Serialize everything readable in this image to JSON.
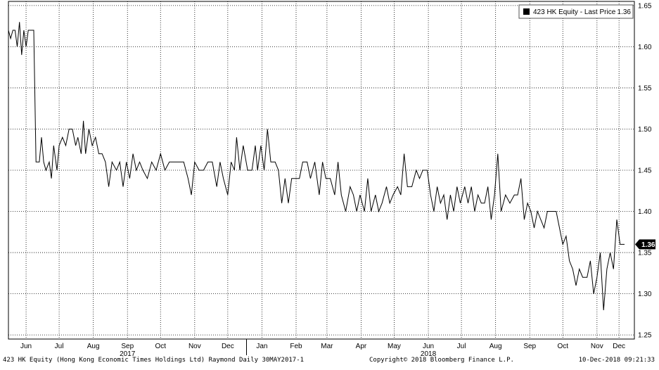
{
  "legend": {
    "label": "423 HK Equity - Last Price",
    "value": "1.36"
  },
  "last_price_tag": "1.36",
  "footer": {
    "left": "423 HK Equity (Hong Kong Economic Times Holdings Ltd) Raymond  Daily 30MAY2017-1",
    "center": "Copyright© 2018 Bloomberg Finance L.P.",
    "right": "10-Dec-2018 09:21:33"
  },
  "colors": {
    "line": "#000000",
    "grid": "#000000",
    "tag_bg": "#000000",
    "tag_text": "#ffffff"
  },
  "chart_data": {
    "type": "line",
    "title": "",
    "xlabel": "",
    "ylabel": "",
    "ylim": [
      1.25,
      1.65
    ],
    "yticks": [
      1.25,
      1.3,
      1.35,
      1.4,
      1.45,
      1.5,
      1.55,
      1.6,
      1.65
    ],
    "ytick_labels": [
      "1.25",
      "1.30",
      "1.35",
      "1.40",
      "1.45",
      "1.50",
      "1.55",
      "1.60",
      "1.65"
    ],
    "xlim": [
      "2017-05-30",
      "2018-12-10"
    ],
    "xtick_labels": [
      "Jun",
      "Jul",
      "Aug",
      "Sep",
      "Oct",
      "Nov",
      "Dec",
      "Jan",
      "Feb",
      "Mar",
      "Apr",
      "May",
      "Jun",
      "Jul",
      "Aug",
      "Sep",
      "Oct",
      "Nov",
      "Dec"
    ],
    "xtick_dates": [
      "2017-06-15",
      "2017-07-15",
      "2017-08-15",
      "2017-09-15",
      "2017-10-15",
      "2017-11-15",
      "2017-12-15",
      "2018-01-15",
      "2018-02-15",
      "2018-03-15",
      "2018-04-15",
      "2018-05-15",
      "2018-06-15",
      "2018-07-15",
      "2018-08-15",
      "2018-09-15",
      "2018-10-15",
      "2018-11-15",
      "2018-12-05"
    ],
    "year_labels": [
      {
        "label": "2017",
        "date": "2017-09-15"
      },
      {
        "label": "2018",
        "date": "2018-06-15"
      }
    ],
    "grid": true,
    "legend_position": "top-right",
    "series": [
      {
        "name": "423 HK Equity - Last Price",
        "points": [
          [
            "2017-05-30",
            1.62
          ],
          [
            "2017-06-01",
            1.61
          ],
          [
            "2017-06-03",
            1.62
          ],
          [
            "2017-06-05",
            1.62
          ],
          [
            "2017-06-07",
            1.6
          ],
          [
            "2017-06-09",
            1.63
          ],
          [
            "2017-06-11",
            1.59
          ],
          [
            "2017-06-13",
            1.62
          ],
          [
            "2017-06-15",
            1.6
          ],
          [
            "2017-06-17",
            1.62
          ],
          [
            "2017-06-22",
            1.62
          ],
          [
            "2017-06-24",
            1.46
          ],
          [
            "2017-06-27",
            1.46
          ],
          [
            "2017-06-29",
            1.49
          ],
          [
            "2017-07-01",
            1.46
          ],
          [
            "2017-07-03",
            1.45
          ],
          [
            "2017-07-06",
            1.46
          ],
          [
            "2017-07-08",
            1.44
          ],
          [
            "2017-07-10",
            1.48
          ],
          [
            "2017-07-13",
            1.45
          ],
          [
            "2017-07-15",
            1.48
          ],
          [
            "2017-07-18",
            1.49
          ],
          [
            "2017-07-21",
            1.48
          ],
          [
            "2017-07-24",
            1.5
          ],
          [
            "2017-07-27",
            1.5
          ],
          [
            "2017-07-30",
            1.48
          ],
          [
            "2017-08-01",
            1.49
          ],
          [
            "2017-08-04",
            1.47
          ],
          [
            "2017-08-06",
            1.51
          ],
          [
            "2017-08-08",
            1.47
          ],
          [
            "2017-08-11",
            1.5
          ],
          [
            "2017-08-14",
            1.48
          ],
          [
            "2017-08-17",
            1.49
          ],
          [
            "2017-08-20",
            1.47
          ],
          [
            "2017-08-23",
            1.47
          ],
          [
            "2017-08-26",
            1.46
          ],
          [
            "2017-08-29",
            1.43
          ],
          [
            "2017-09-01",
            1.46
          ],
          [
            "2017-09-05",
            1.45
          ],
          [
            "2017-09-08",
            1.46
          ],
          [
            "2017-09-11",
            1.43
          ],
          [
            "2017-09-14",
            1.46
          ],
          [
            "2017-09-17",
            1.44
          ],
          [
            "2017-09-20",
            1.47
          ],
          [
            "2017-09-23",
            1.45
          ],
          [
            "2017-09-26",
            1.46
          ],
          [
            "2017-09-29",
            1.45
          ],
          [
            "2017-10-03",
            1.44
          ],
          [
            "2017-10-07",
            1.46
          ],
          [
            "2017-10-11",
            1.45
          ],
          [
            "2017-10-15",
            1.47
          ],
          [
            "2017-10-19",
            1.45
          ],
          [
            "2017-10-23",
            1.46
          ],
          [
            "2017-10-27",
            1.46
          ],
          [
            "2017-11-01",
            1.46
          ],
          [
            "2017-11-05",
            1.46
          ],
          [
            "2017-11-09",
            1.44
          ],
          [
            "2017-11-12",
            1.42
          ],
          [
            "2017-11-15",
            1.46
          ],
          [
            "2017-11-19",
            1.45
          ],
          [
            "2017-11-23",
            1.45
          ],
          [
            "2017-11-27",
            1.46
          ],
          [
            "2017-12-01",
            1.46
          ],
          [
            "2017-12-05",
            1.43
          ],
          [
            "2017-12-08",
            1.46
          ],
          [
            "2017-12-11",
            1.44
          ],
          [
            "2017-12-15",
            1.42
          ],
          [
            "2017-12-18",
            1.46
          ],
          [
            "2017-12-21",
            1.45
          ],
          [
            "2017-12-23",
            1.49
          ],
          [
            "2017-12-26",
            1.45
          ],
          [
            "2017-12-29",
            1.48
          ],
          [
            "2018-01-02",
            1.45
          ],
          [
            "2018-01-06",
            1.45
          ],
          [
            "2018-01-09",
            1.48
          ],
          [
            "2018-01-11",
            1.45
          ],
          [
            "2018-01-14",
            1.48
          ],
          [
            "2018-01-17",
            1.45
          ],
          [
            "2018-01-20",
            1.5
          ],
          [
            "2018-01-23",
            1.46
          ],
          [
            "2018-01-27",
            1.46
          ],
          [
            "2018-01-30",
            1.45
          ],
          [
            "2018-02-02",
            1.41
          ],
          [
            "2018-02-05",
            1.44
          ],
          [
            "2018-02-08",
            1.41
          ],
          [
            "2018-02-11",
            1.44
          ],
          [
            "2018-02-14",
            1.44
          ],
          [
            "2018-02-18",
            1.44
          ],
          [
            "2018-02-21",
            1.46
          ],
          [
            "2018-02-25",
            1.46
          ],
          [
            "2018-02-28",
            1.44
          ],
          [
            "2018-03-04",
            1.46
          ],
          [
            "2018-03-08",
            1.42
          ],
          [
            "2018-03-11",
            1.46
          ],
          [
            "2018-03-14",
            1.44
          ],
          [
            "2018-03-18",
            1.44
          ],
          [
            "2018-03-22",
            1.42
          ],
          [
            "2018-03-25",
            1.46
          ],
          [
            "2018-03-28",
            1.42
          ],
          [
            "2018-04-01",
            1.4
          ],
          [
            "2018-04-05",
            1.43
          ],
          [
            "2018-04-08",
            1.42
          ],
          [
            "2018-04-11",
            1.4
          ],
          [
            "2018-04-14",
            1.42
          ],
          [
            "2018-04-18",
            1.4
          ],
          [
            "2018-04-21",
            1.44
          ],
          [
            "2018-04-24",
            1.4
          ],
          [
            "2018-04-28",
            1.42
          ],
          [
            "2018-05-01",
            1.4
          ],
          [
            "2018-05-04",
            1.41
          ],
          [
            "2018-05-08",
            1.43
          ],
          [
            "2018-05-11",
            1.41
          ],
          [
            "2018-05-14",
            1.42
          ],
          [
            "2018-05-18",
            1.43
          ],
          [
            "2018-05-21",
            1.42
          ],
          [
            "2018-05-24",
            1.47
          ],
          [
            "2018-05-27",
            1.43
          ],
          [
            "2018-05-31",
            1.43
          ],
          [
            "2018-06-04",
            1.45
          ],
          [
            "2018-06-07",
            1.44
          ],
          [
            "2018-06-10",
            1.45
          ],
          [
            "2018-06-14",
            1.45
          ],
          [
            "2018-06-17",
            1.42
          ],
          [
            "2018-06-20",
            1.4
          ],
          [
            "2018-06-23",
            1.43
          ],
          [
            "2018-06-26",
            1.41
          ],
          [
            "2018-06-29",
            1.42
          ],
          [
            "2018-07-02",
            1.39
          ],
          [
            "2018-07-05",
            1.42
          ],
          [
            "2018-07-08",
            1.4
          ],
          [
            "2018-07-11",
            1.43
          ],
          [
            "2018-07-14",
            1.41
          ],
          [
            "2018-07-18",
            1.43
          ],
          [
            "2018-07-21",
            1.41
          ],
          [
            "2018-07-24",
            1.43
          ],
          [
            "2018-07-27",
            1.4
          ],
          [
            "2018-07-30",
            1.42
          ],
          [
            "2018-08-02",
            1.41
          ],
          [
            "2018-08-05",
            1.41
          ],
          [
            "2018-08-08",
            1.43
          ],
          [
            "2018-08-11",
            1.39
          ],
          [
            "2018-08-14",
            1.42
          ],
          [
            "2018-08-17",
            1.47
          ],
          [
            "2018-08-20",
            1.4
          ],
          [
            "2018-08-24",
            1.42
          ],
          [
            "2018-08-28",
            1.41
          ],
          [
            "2018-09-01",
            1.42
          ],
          [
            "2018-09-04",
            1.42
          ],
          [
            "2018-09-07",
            1.44
          ],
          [
            "2018-09-10",
            1.39
          ],
          [
            "2018-09-13",
            1.41
          ],
          [
            "2018-09-16",
            1.4
          ],
          [
            "2018-09-19",
            1.38
          ],
          [
            "2018-09-22",
            1.4
          ],
          [
            "2018-09-25",
            1.39
          ],
          [
            "2018-09-28",
            1.38
          ],
          [
            "2018-10-01",
            1.4
          ],
          [
            "2018-10-05",
            1.4
          ],
          [
            "2018-10-09",
            1.4
          ],
          [
            "2018-10-12",
            1.38
          ],
          [
            "2018-10-15",
            1.36
          ],
          [
            "2018-10-18",
            1.37
          ],
          [
            "2018-10-21",
            1.34
          ],
          [
            "2018-10-24",
            1.33
          ],
          [
            "2018-10-27",
            1.31
          ],
          [
            "2018-10-30",
            1.33
          ],
          [
            "2018-11-02",
            1.32
          ],
          [
            "2018-11-06",
            1.32
          ],
          [
            "2018-11-09",
            1.34
          ],
          [
            "2018-11-12",
            1.3
          ],
          [
            "2018-11-15",
            1.32
          ],
          [
            "2018-11-18",
            1.35
          ],
          [
            "2018-11-21",
            1.28
          ],
          [
            "2018-11-24",
            1.33
          ],
          [
            "2018-11-27",
            1.35
          ],
          [
            "2018-11-30",
            1.33
          ],
          [
            "2018-12-03",
            1.39
          ],
          [
            "2018-12-06",
            1.36
          ],
          [
            "2018-12-10",
            1.36
          ]
        ]
      }
    ]
  }
}
